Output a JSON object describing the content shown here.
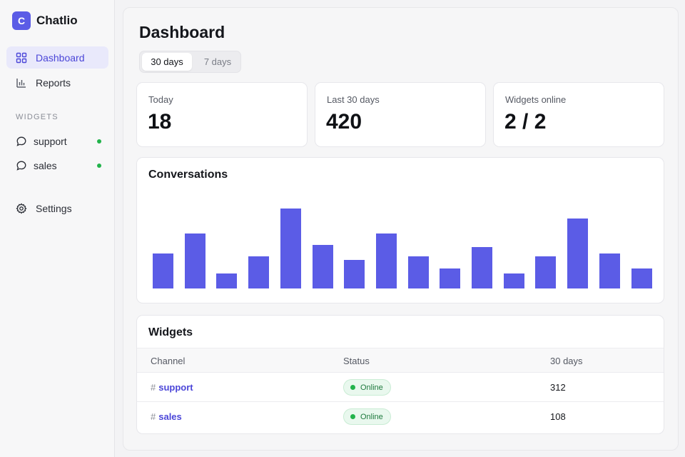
{
  "app": {
    "logo_letter": "C",
    "name": "Chatlio"
  },
  "sidebar": {
    "nav": [
      {
        "label": "Dashboard",
        "icon": "grid-icon",
        "active": true
      },
      {
        "label": "Reports",
        "icon": "bar-chart-icon",
        "active": false
      }
    ],
    "section_label": "WIDGETS",
    "widgets": [
      {
        "label": "support",
        "icon": "chat-bubble-icon",
        "status": "online"
      },
      {
        "label": "sales",
        "icon": "chat-bubble-icon",
        "status": "online"
      }
    ],
    "settings": {
      "label": "Settings",
      "icon": "gear-icon"
    }
  },
  "main": {
    "title": "Dashboard",
    "range": {
      "options": [
        "30 days",
        "7 days"
      ],
      "selected": "30 days"
    },
    "stats": [
      {
        "label": "Today",
        "value": "18"
      },
      {
        "label": "Last 30 days",
        "value": "420"
      },
      {
        "label": "Widgets online",
        "value": "2 / 2"
      }
    ],
    "conversations": {
      "title": "Conversations"
    },
    "widgets_table": {
      "title": "Widgets",
      "columns": [
        "Channel",
        "Status",
        "30 days"
      ],
      "rows": [
        {
          "channel": "support",
          "status": "Online",
          "count": "312"
        },
        {
          "channel": "sales",
          "status": "Online",
          "count": "108"
        }
      ]
    }
  },
  "colors": {
    "accent": "#5b5ce6",
    "online": "#22b34b"
  },
  "chart_data": {
    "type": "bar",
    "title": "Conversations",
    "values": [
      14,
      22,
      6,
      13,
      32,
      17.5,
      11.5,
      22,
      13,
      8,
      16.5,
      6,
      13,
      28,
      14,
      8
    ],
    "ylim": [
      0,
      36
    ],
    "grid": false,
    "legend": "none"
  }
}
